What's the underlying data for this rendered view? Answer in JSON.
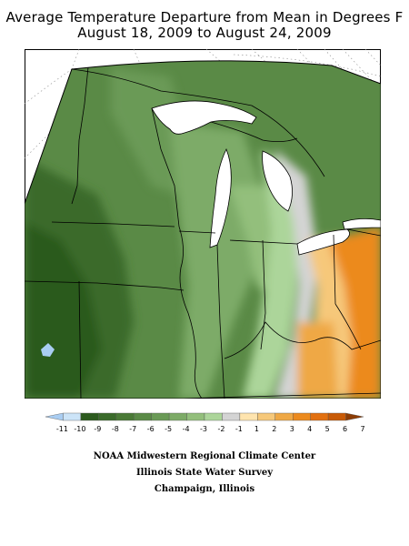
{
  "title": {
    "line1": "Average Temperature Departure from Mean in Degrees F",
    "line2": "August 18, 2009 to August 24, 2009"
  },
  "legend": {
    "unit": "Degrees F",
    "labels": [
      "-11",
      "-10",
      "-9",
      "-8",
      "-7",
      "-6",
      "-5",
      "-4",
      "-3",
      "-2",
      "-1",
      "1",
      "2",
      "3",
      "4",
      "5",
      "6",
      "7"
    ],
    "colors": [
      "#a9cdf2",
      "#cce4f8",
      "#2c5a1e",
      "#3a6b2a",
      "#4a7a36",
      "#5a8a46",
      "#6a9a56",
      "#7dab67",
      "#93bf7c",
      "#acd59a",
      "#d4d4d4",
      "#ffe4ae",
      "#f6c87a",
      "#efa845",
      "#ec8a1e",
      "#e27010",
      "#c85a06",
      "#8c3c04"
    ]
  },
  "credits": {
    "line1": "NOAA Midwestern Regional Climate Center",
    "line2": "Illinois State Water Survey",
    "line3": "Champaign, Illinois"
  },
  "map": {
    "colors": {
      "background": "#ffffff",
      "frame": "#000000",
      "gridline": "#808080",
      "darkest_green": "#2c5a1e",
      "dark_green": "#3a6b2a",
      "mid_green": "#5a8a46",
      "light_green": "#7dab67",
      "pale_green": "#acd59a",
      "neutral_gray": "#d4d4d4",
      "light_orange": "#f6c87a",
      "orange": "#ec8a1e",
      "cold_spot": "#a9cdf2"
    }
  }
}
